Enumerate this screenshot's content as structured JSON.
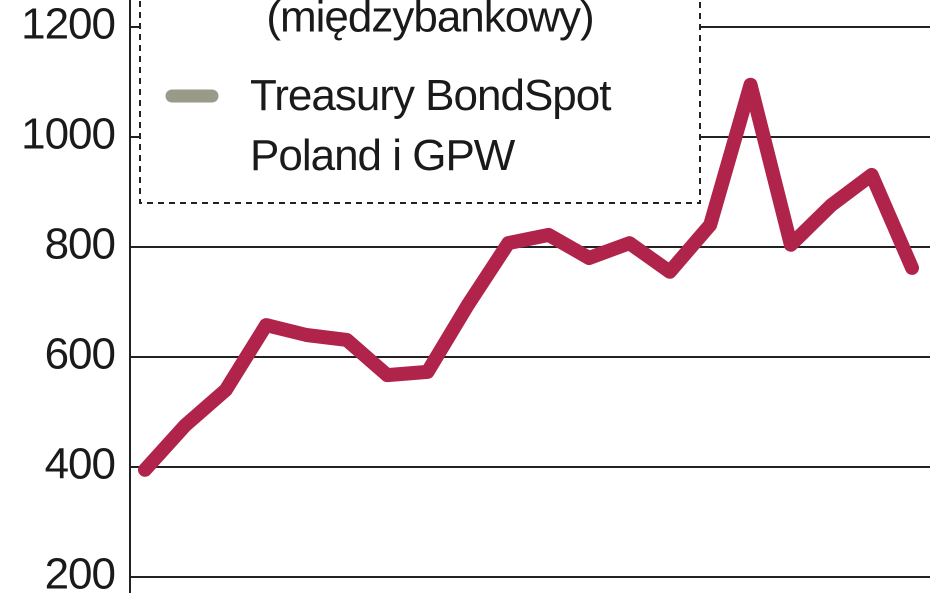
{
  "chart_data": {
    "type": "line",
    "categories": [
      null,
      null,
      null,
      null,
      null,
      null,
      null,
      null,
      null,
      null,
      null,
      null,
      null,
      null,
      null,
      null,
      null,
      null,
      null,
      null
    ],
    "series": [
      {
        "name": "(międzybankowy)",
        "color": "#b0234a",
        "values": [
          395,
          476,
          540,
          658,
          640,
          631,
          567,
          573,
          695,
          807,
          822,
          780,
          807,
          755,
          840,
          1095,
          804,
          876,
          931,
          762
        ]
      },
      {
        "name": "Treasury BondSpot Poland i GPW",
        "color": "#9a9a88",
        "values": [
          null,
          null,
          null,
          null,
          null,
          null,
          null,
          null,
          null,
          null,
          null,
          null,
          null,
          null,
          null,
          null,
          null,
          null,
          null,
          null
        ]
      }
    ],
    "ylim": [
      171,
      1249
    ],
    "yticks": [
      200,
      400,
      600,
      800,
      1000,
      1200
    ],
    "grid": true
  }
}
